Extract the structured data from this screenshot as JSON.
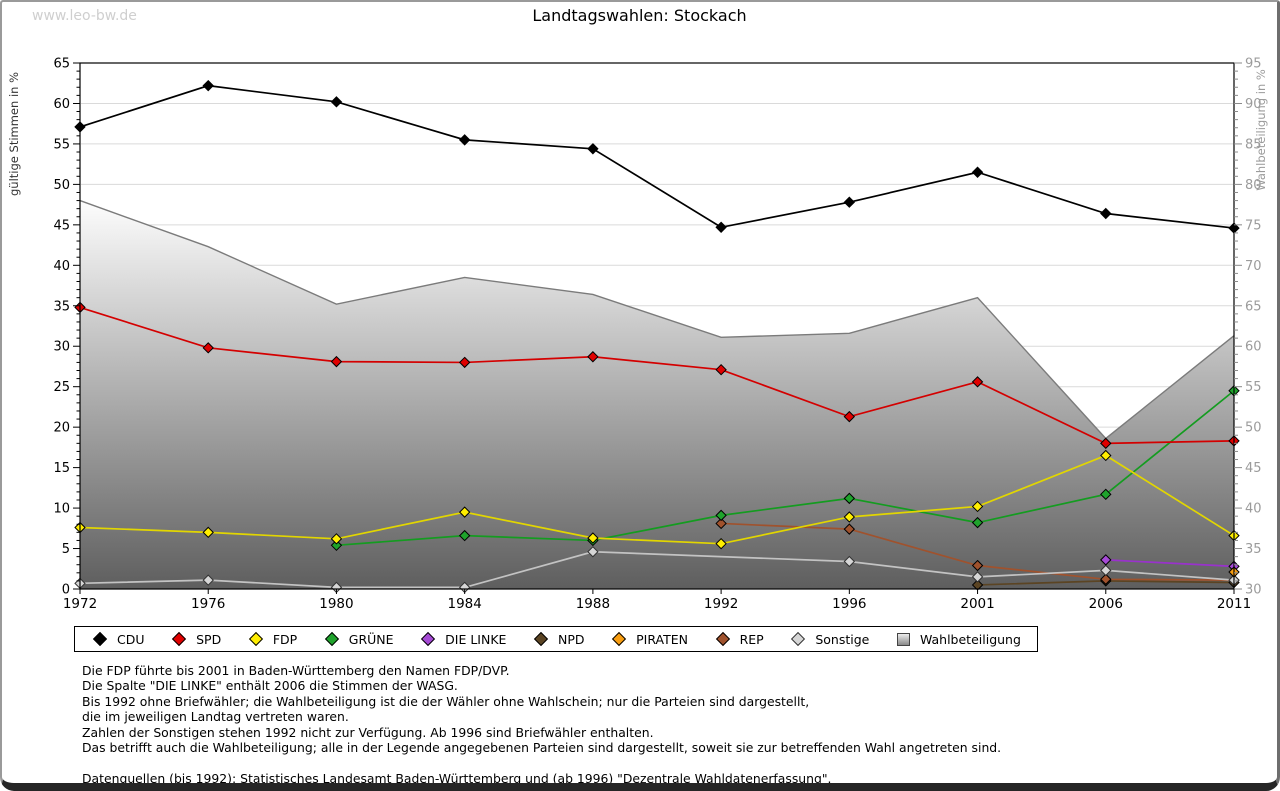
{
  "watermark": "www.leo-bw.de",
  "title": "Landtagswahlen: Stockach",
  "chart_data": {
    "type": "line",
    "title": "Landtagswahlen: Stockach",
    "categories": [
      "1972",
      "1976",
      "1980",
      "1984",
      "1988",
      "1992",
      "1996",
      "2001",
      "2006",
      "2011"
    ],
    "left_axis": {
      "label": "gültige Stimmen in %",
      "min": 0,
      "max": 65,
      "tick_step": 5
    },
    "right_axis": {
      "label": "Wahlbeteiligung in %",
      "min": 30,
      "max": 95,
      "tick_step": 5
    },
    "grid": true,
    "legend_position": "bottom",
    "series": [
      {
        "name": "CDU",
        "color": "#000000",
        "marker": "#000000",
        "values": [
          57.1,
          62.2,
          60.2,
          55.5,
          54.4,
          44.7,
          47.8,
          51.5,
          46.4,
          44.6
        ]
      },
      {
        "name": "SPD",
        "color": "#d40000",
        "marker": "#e00000",
        "values": [
          34.8,
          29.8,
          28.1,
          28.0,
          28.7,
          27.1,
          21.3,
          25.6,
          18.0,
          18.3
        ]
      },
      {
        "name": "FDP",
        "color": "#e2d600",
        "marker": "#ffee00",
        "values": [
          7.6,
          7.0,
          6.2,
          9.5,
          6.3,
          5.6,
          8.9,
          10.2,
          16.5,
          6.6
        ]
      },
      {
        "name": "GRÜNE",
        "color": "#149c20",
        "marker": "#1fa32c",
        "values": [
          null,
          null,
          5.4,
          6.6,
          6.0,
          9.1,
          11.2,
          8.2,
          11.7,
          24.5
        ]
      },
      {
        "name": "DIE LINKE",
        "color": "#9932cc",
        "marker": "#a64ad6",
        "values": [
          null,
          null,
          null,
          null,
          null,
          null,
          null,
          null,
          3.6,
          2.8
        ]
      },
      {
        "name": "NPD",
        "color": "#5b4423",
        "marker": "#5b4423",
        "values": [
          null,
          null,
          null,
          null,
          null,
          null,
          null,
          0.5,
          1.0,
          0.8
        ]
      },
      {
        "name": "PIRATEN",
        "color": "#f29400",
        "marker": "#f89d10",
        "values": [
          null,
          null,
          null,
          null,
          null,
          null,
          null,
          null,
          null,
          2.1
        ]
      },
      {
        "name": "REP",
        "color": "#a0522d",
        "marker": "#a0522d",
        "values": [
          null,
          null,
          null,
          null,
          null,
          8.1,
          7.4,
          2.9,
          1.2,
          1.1
        ]
      },
      {
        "name": "Sonstige",
        "color": "#c3c3c3",
        "marker": "#d6d6d6",
        "border": "#333333",
        "values": [
          0.7,
          1.1,
          0.2,
          0.2,
          4.6,
          null,
          3.4,
          1.5,
          2.3,
          1.1
        ]
      }
    ],
    "area": {
      "name": "Wahlbeteiligung",
      "axis": "right",
      "line_color": "#7b7b7b",
      "fill_top": "#fdfdfd",
      "fill_bottom": "#5e5e5e",
      "values": [
        78.0,
        72.3,
        65.2,
        68.5,
        66.4,
        61.1,
        61.6,
        66.0,
        48.6,
        61.3
      ]
    }
  },
  "notes": [
    "Die FDP führte bis 2001 in Baden-Württemberg den Namen FDP/DVP.",
    "Die Spalte \"DIE LINKE\" enthält 2006 die Stimmen der WASG.",
    "Bis 1992 ohne Briefwähler; die Wahlbeteiligung ist die der Wähler ohne Wahlschein; nur die Parteien sind dargestellt,",
    "die im jeweiligen Landtag vertreten waren.",
    "Zahlen der Sonstigen stehen 1992 nicht zur Verfügung. Ab 1996 sind Briefwähler enthalten.",
    "Das betrifft auch die Wahlbeteiligung; alle in der Legende angegebenen Parteien sind dargestellt, soweit sie zur betreffenden Wahl angetreten sind.",
    "",
    "Datenquellen (bis 1992): Statistisches Landesamt Baden-Württemberg und (ab 1996) \"Dezentrale Wahldatenerfassung\"."
  ]
}
